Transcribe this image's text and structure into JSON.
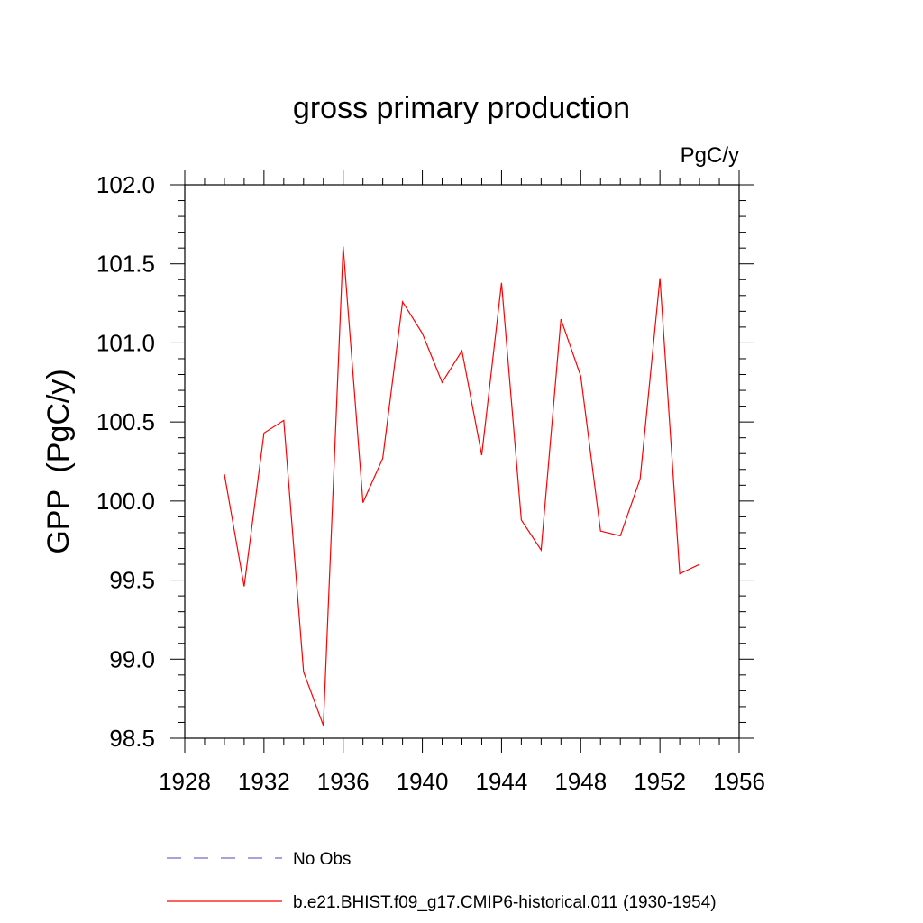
{
  "chart_data": {
    "type": "line",
    "title": "gross primary production",
    "units_label": "PgC/y",
    "ylabel": "GPP  (PgC/y)",
    "xlabel": "",
    "xlim": [
      1928,
      1956
    ],
    "ylim": [
      98.5,
      102.0
    ],
    "x_ticks": [
      1928,
      1932,
      1936,
      1940,
      1944,
      1948,
      1952,
      1956
    ],
    "y_ticks": [
      "98.5",
      "99.0",
      "99.5",
      "100.0",
      "100.5",
      "101.0",
      "101.5",
      "102.0"
    ],
    "grid": false,
    "legend_position": "bottom",
    "series": [
      {
        "name": "No Obs",
        "color": "#7b68c8",
        "style": "dashed",
        "x": [],
        "y": []
      },
      {
        "name": "b.e21.BHIST.f09_g17.CMIP6-historical.011 (1930-1954)",
        "color": "#ff0000",
        "style": "solid",
        "x": [
          1930,
          1931,
          1932,
          1933,
          1934,
          1935,
          1936,
          1937,
          1938,
          1939,
          1940,
          1941,
          1942,
          1943,
          1944,
          1945,
          1946,
          1947,
          1948,
          1949,
          1950,
          1951,
          1952,
          1953,
          1954
        ],
        "y": [
          100.17,
          99.46,
          100.43,
          100.51,
          98.92,
          98.58,
          101.61,
          99.99,
          100.27,
          101.26,
          101.06,
          100.75,
          100.95,
          100.29,
          101.38,
          99.88,
          99.69,
          101.15,
          100.79,
          99.81,
          99.78,
          100.14,
          101.41,
          99.54,
          99.6
        ]
      }
    ]
  }
}
